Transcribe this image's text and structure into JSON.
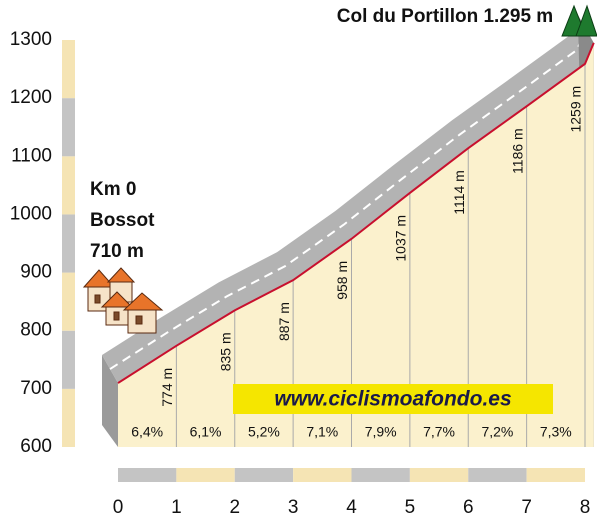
{
  "chart_data": {
    "type": "area",
    "title": "Col du Portillon 1.295 m",
    "start": {
      "km_label": "Km 0",
      "name": "Bossot",
      "elevation_label": "710 m"
    },
    "watermark": "www.ciclismoafondo.es",
    "x": [
      0,
      1,
      2,
      3,
      4,
      5,
      6,
      7,
      8,
      8.15
    ],
    "values": [
      710,
      774,
      835,
      887,
      958,
      1037,
      1114,
      1186,
      1259,
      1295
    ],
    "value_labels": [
      null,
      "774 m",
      "835 m",
      "887 m",
      "958 m",
      "1037 m",
      "1114 m",
      "1186 m",
      "1259 m",
      null
    ],
    "color": "#c8102e",
    "gradients": {
      "values": [
        6.4,
        6.1,
        5.2,
        7.1,
        7.9,
        7.7,
        7.2,
        7.3
      ],
      "value_labels": [
        "6,4%",
        "6,1%",
        "5,2%",
        "7,1%",
        "7,9%",
        "7,7%",
        "7,2%",
        "7,3%"
      ]
    },
    "xlim": [
      0,
      8
    ],
    "xticks": [
      0,
      1,
      2,
      3,
      4,
      5,
      6,
      7,
      8
    ],
    "ylim": [
      600,
      1300
    ],
    "yticks": [
      600,
      700,
      800,
      900,
      1000,
      1100,
      1200,
      1300
    ]
  }
}
